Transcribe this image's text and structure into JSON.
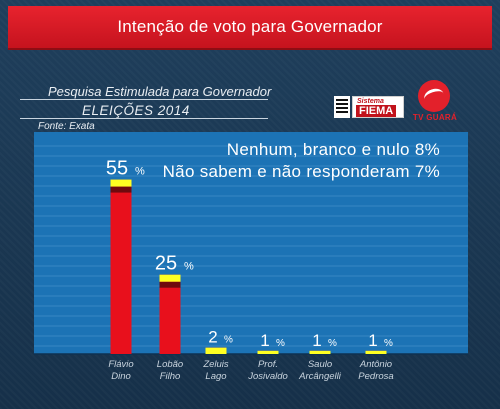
{
  "header": {
    "title": "Intenção de voto para Governador"
  },
  "survey": {
    "title": "Pesquisa Estimulada para Governador",
    "election": "ELEIÇÕES 2014",
    "source": "Fonte: Exata"
  },
  "logos": {
    "fiema_small": "Sistema",
    "fiema_big": "FIEMA",
    "tv": "TV GUARÁ"
  },
  "notes": [
    "Nenhum, branco e nulo 8%",
    "Não sabem e não responderam 7%"
  ],
  "colors": {
    "bar": "#e8101c",
    "bar_dark": "#6f0a0e",
    "cap": "#ffff22",
    "plot_bg": "#1c73b5",
    "gridline": "#4f98cf"
  },
  "chart_data": {
    "type": "bar",
    "categories": [
      [
        "Flávio",
        "Dino"
      ],
      [
        "Lobão",
        "Filho"
      ],
      [
        "Zeluis",
        "Lago"
      ],
      [
        "Prof.",
        "Josivaldo"
      ],
      [
        "Saulo",
        "Arcângelli"
      ],
      [
        "Antônio",
        "Pedrosa"
      ]
    ],
    "values": [
      55,
      25,
      2,
      1,
      1,
      1
    ],
    "value_labels": [
      "55",
      "25",
      "2",
      "1",
      "1",
      "1"
    ],
    "unit": "%",
    "ylim": [
      0,
      70
    ],
    "grid": true
  }
}
